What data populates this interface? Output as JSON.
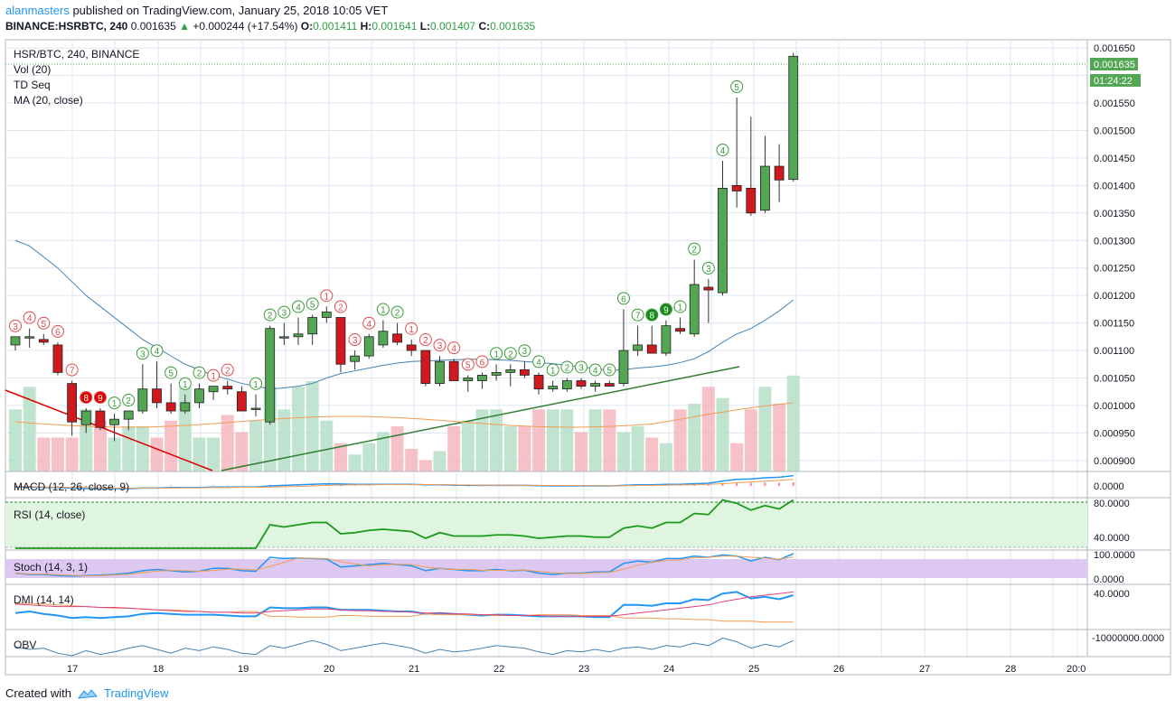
{
  "header": {
    "author": "alanmasters",
    "published": "published on TradingView.com, January 25, 2018 10:05 VET",
    "symbol": "BINANCE:HSRBTC, 240",
    "last": "0.001635",
    "change": "+0.000244 (+17.54%)",
    "o_label": "O:",
    "o": "0.001411",
    "h_label": "H:",
    "h": "0.001641",
    "l_label": "L:",
    "l": "0.001407",
    "c_label": "C:",
    "c": "0.001635"
  },
  "legend": [
    "HSR/BTC, 240, BINANCE",
    "Vol (20)",
    "TD Seq",
    "MA (20, close)"
  ],
  "price_badge": "0.001635",
  "countdown_badge": "01:24:22",
  "panes": {
    "macd": {
      "label": "MACD (12, 26, close, 9)",
      "tick": "0.0000"
    },
    "rsi": {
      "label": "RSI (14, close)",
      "ticks": [
        "80.0000",
        "40.0000"
      ]
    },
    "stoch": {
      "label": "Stoch (14, 3, 1)",
      "ticks": [
        "100.0000",
        "0.0000"
      ]
    },
    "dmi": {
      "label": "DMI (14, 14)",
      "tick": "40.0000"
    },
    "obv": {
      "label": "OBV",
      "tick": "-10000000.0000"
    }
  },
  "footer": {
    "created_with": "Created with",
    "brand": "TradingView"
  },
  "colors": {
    "up": "#53a653",
    "down": "#d0191e",
    "ma": "#4682b4",
    "grid": "#dfe6f0",
    "trend_up": "#2e7d32",
    "trend_down": "#e00000",
    "badge": "#53a653"
  },
  "chart_data": {
    "type": "candlestick",
    "title": "HSR/BTC, 240, BINANCE",
    "x_ticks": [
      "17",
      "18",
      "19",
      "20",
      "21",
      "22",
      "23",
      "24",
      "25",
      "26",
      "27",
      "28",
      "20:0"
    ],
    "y_ticks": [
      "0.001650",
      "0.001550",
      "0.001500",
      "0.001450",
      "0.001400",
      "0.001350",
      "0.001300",
      "0.001250",
      "0.001200",
      "0.001150",
      "0.001100",
      "0.001050",
      "0.001000",
      "0.000950",
      "0.000900"
    ],
    "y_range": [
      0.00088,
      0.001665
    ],
    "candles": [
      [
        0.00111,
        0.001125,
        0.0011,
        0.001125
      ],
      [
        0.001125,
        0.00114,
        0.001105,
        0.001125
      ],
      [
        0.00112,
        0.00113,
        0.00111,
        0.001115
      ],
      [
        0.00111,
        0.001115,
        0.001055,
        0.00106
      ],
      [
        0.00104,
        0.001045,
        0.000945,
        0.00097
      ],
      [
        0.000965,
        0.000995,
        0.00095,
        0.00099
      ],
      [
        0.00099,
        0.000995,
        0.000955,
        0.00096
      ],
      [
        0.000965,
        0.000985,
        0.000935,
        0.000975
      ],
      [
        0.000975,
        0.00099,
        0.000955,
        0.00099
      ],
      [
        0.00099,
        0.001075,
        0.000985,
        0.00103
      ],
      [
        0.00103,
        0.00108,
        0.000995,
        0.001005
      ],
      [
        0.001005,
        0.00104,
        0.000985,
        0.00099
      ],
      [
        0.00099,
        0.00102,
        0.000985,
        0.001005
      ],
      [
        0.001005,
        0.00104,
        0.000995,
        0.00103
      ],
      [
        0.001025,
        0.001035,
        0.00101,
        0.001035
      ],
      [
        0.001035,
        0.001045,
        0.00102,
        0.00103
      ],
      [
        0.001025,
        0.001035,
        0.00099,
        0.00099
      ],
      [
        0.000995,
        0.00102,
        0.00098,
        0.000995
      ],
      [
        0.00097,
        0.001145,
        0.000965,
        0.00114
      ],
      [
        0.001125,
        0.00115,
        0.00111,
        0.001125
      ],
      [
        0.001125,
        0.00116,
        0.00111,
        0.00113
      ],
      [
        0.00113,
        0.001165,
        0.00111,
        0.00116
      ],
      [
        0.00116,
        0.00118,
        0.00115,
        0.00117
      ],
      [
        0.00116,
        0.00116,
        0.00106,
        0.001075
      ],
      [
        0.00108,
        0.0011,
        0.001065,
        0.00109
      ],
      [
        0.00109,
        0.00113,
        0.001085,
        0.001125
      ],
      [
        0.00111,
        0.001155,
        0.001105,
        0.001135
      ],
      [
        0.00113,
        0.00115,
        0.00111,
        0.001115
      ],
      [
        0.00111,
        0.00112,
        0.00109,
        0.0011
      ],
      [
        0.0011,
        0.0011,
        0.001035,
        0.00104
      ],
      [
        0.00104,
        0.00109,
        0.001035,
        0.00108
      ],
      [
        0.00108,
        0.001085,
        0.001045,
        0.001045
      ],
      [
        0.001045,
        0.001055,
        0.001025,
        0.00105
      ],
      [
        0.001045,
        0.00106,
        0.00103,
        0.001055
      ],
      [
        0.001055,
        0.001075,
        0.001045,
        0.00106
      ],
      [
        0.00106,
        0.001075,
        0.001035,
        0.001065
      ],
      [
        0.001065,
        0.00108,
        0.00105,
        0.001055
      ],
      [
        0.001055,
        0.00106,
        0.00102,
        0.00103
      ],
      [
        0.00103,
        0.001045,
        0.001025,
        0.001035
      ],
      [
        0.00103,
        0.00105,
        0.001025,
        0.001045
      ],
      [
        0.001045,
        0.00105,
        0.00103,
        0.001035
      ],
      [
        0.001035,
        0.001045,
        0.001025,
        0.00104
      ],
      [
        0.00104,
        0.001045,
        0.001035,
        0.001035
      ],
      [
        0.00104,
        0.001175,
        0.001035,
        0.0011
      ],
      [
        0.0011,
        0.001145,
        0.00109,
        0.00111
      ],
      [
        0.00111,
        0.001145,
        0.001095,
        0.001095
      ],
      [
        0.001095,
        0.001155,
        0.00109,
        0.001145
      ],
      [
        0.00114,
        0.00116,
        0.00113,
        0.001135
      ],
      [
        0.00113,
        0.001265,
        0.001125,
        0.00122
      ],
      [
        0.001215,
        0.00123,
        0.00115,
        0.00121
      ],
      [
        0.001205,
        0.001445,
        0.0012,
        0.001395
      ],
      [
        0.0014,
        0.00156,
        0.00136,
        0.00139
      ],
      [
        0.001395,
        0.001525,
        0.001345,
        0.00135
      ],
      [
        0.001355,
        0.00149,
        0.00135,
        0.001435
      ],
      [
        0.001435,
        0.001475,
        0.00137,
        0.00141
      ],
      [
        0.001411,
        0.001641,
        0.001407,
        0.001635
      ]
    ],
    "volume": [
      0.55,
      0.75,
      0.3,
      0.3,
      0.3,
      0.55,
      0.45,
      0.3,
      0.4,
      0.4,
      0.3,
      0.45,
      0.75,
      0.3,
      0.3,
      0.5,
      0.35,
      0.45,
      0.75,
      0.55,
      0.75,
      0.8,
      0.45,
      0.25,
      0.15,
      0.25,
      0.35,
      0.4,
      0.2,
      0.1,
      0.18,
      0.4,
      0.45,
      0.55,
      0.55,
      0.4,
      0.4,
      0.55,
      0.55,
      0.55,
      0.35,
      0.55,
      0.55,
      0.35,
      0.4,
      0.3,
      0.25,
      0.55,
      0.6,
      0.75,
      0.65,
      0.25,
      0.55,
      0.75,
      0.6,
      0.85
    ],
    "ma20": [
      0.0013,
      0.00129,
      0.00127,
      0.00125,
      0.001225,
      0.0012,
      0.00118,
      0.00116,
      0.00114,
      0.00112,
      0.001105,
      0.00109,
      0.001075,
      0.001065,
      0.001055,
      0.001048,
      0.00104,
      0.001035,
      0.00103,
      0.001032,
      0.001035,
      0.00104,
      0.00105,
      0.001058,
      0.001063,
      0.001068,
      0.001073,
      0.001077,
      0.00108,
      0.001081,
      0.001082,
      0.001083,
      0.001084,
      0.001084,
      0.001083,
      0.001082,
      0.00108,
      0.001078,
      0.001076,
      0.001073,
      0.00107,
      0.001067,
      0.001064,
      0.001065,
      0.001068,
      0.00107,
      0.001073,
      0.001078,
      0.001085,
      0.001098,
      0.001115,
      0.00113,
      0.00114,
      0.001155,
      0.001172,
      0.001192
    ],
    "td_seq": [
      {
        "i": 0,
        "label": "3",
        "pos": "above",
        "color": "red"
      },
      {
        "i": 1,
        "label": "4",
        "pos": "above",
        "color": "red"
      },
      {
        "i": 2,
        "label": "5",
        "pos": "above",
        "color": "red"
      },
      {
        "i": 3,
        "label": "6",
        "pos": "above",
        "color": "red"
      },
      {
        "i": 4,
        "label": "7",
        "pos": "above",
        "color": "red"
      },
      {
        "i": 5,
        "label": "8",
        "pos": "above",
        "color": "redfill"
      },
      {
        "i": 6,
        "label": "9",
        "pos": "above",
        "color": "redfill"
      },
      {
        "i": 7,
        "label": "1",
        "pos": "above",
        "color": "green"
      },
      {
        "i": 8,
        "label": "2",
        "pos": "above",
        "color": "green"
      },
      {
        "i": 9,
        "label": "3",
        "pos": "above",
        "color": "green"
      },
      {
        "i": 10,
        "label": "4",
        "pos": "above",
        "color": "green"
      },
      {
        "i": 11,
        "label": "5",
        "pos": "above",
        "color": "green"
      },
      {
        "i": 12,
        "label": "1",
        "pos": "above",
        "color": "green"
      },
      {
        "i": 13,
        "label": "2",
        "pos": "above",
        "color": "green"
      },
      {
        "i": 14,
        "label": "1",
        "pos": "above",
        "color": "red"
      },
      {
        "i": 15,
        "label": "2",
        "pos": "above",
        "color": "red"
      },
      {
        "i": 17,
        "label": "1",
        "pos": "above",
        "color": "green"
      },
      {
        "i": 18,
        "label": "2",
        "pos": "above",
        "color": "green"
      },
      {
        "i": 19,
        "label": "3",
        "pos": "above",
        "color": "green"
      },
      {
        "i": 20,
        "label": "4",
        "pos": "above",
        "color": "green"
      },
      {
        "i": 21,
        "label": "5",
        "pos": "above",
        "color": "green"
      },
      {
        "i": 22,
        "label": "1",
        "pos": "above",
        "color": "red"
      },
      {
        "i": 23,
        "label": "2",
        "pos": "above",
        "color": "red"
      },
      {
        "i": 24,
        "label": "3",
        "pos": "above",
        "color": "red"
      },
      {
        "i": 25,
        "label": "4",
        "pos": "above",
        "color": "red"
      },
      {
        "i": 26,
        "label": "1",
        "pos": "above",
        "color": "green"
      },
      {
        "i": 27,
        "label": "2",
        "pos": "above",
        "color": "green"
      },
      {
        "i": 28,
        "label": "1",
        "pos": "above",
        "color": "red"
      },
      {
        "i": 29,
        "label": "2",
        "pos": "above",
        "color": "red"
      },
      {
        "i": 30,
        "label": "3",
        "pos": "above",
        "color": "red"
      },
      {
        "i": 31,
        "label": "4",
        "pos": "above",
        "color": "red"
      },
      {
        "i": 32,
        "label": "5",
        "pos": "above",
        "color": "red"
      },
      {
        "i": 33,
        "label": "6",
        "pos": "above",
        "color": "red"
      },
      {
        "i": 34,
        "label": "1",
        "pos": "above",
        "color": "green"
      },
      {
        "i": 35,
        "label": "2",
        "pos": "above",
        "color": "green"
      },
      {
        "i": 36,
        "label": "3",
        "pos": "above",
        "color": "green"
      },
      {
        "i": 37,
        "label": "4",
        "pos": "above",
        "color": "green"
      },
      {
        "i": 38,
        "label": "1",
        "pos": "above",
        "color": "green"
      },
      {
        "i": 39,
        "label": "2",
        "pos": "above",
        "color": "green"
      },
      {
        "i": 40,
        "label": "3",
        "pos": "above",
        "color": "green"
      },
      {
        "i": 41,
        "label": "4",
        "pos": "above",
        "color": "green"
      },
      {
        "i": 42,
        "label": "5",
        "pos": "above",
        "color": "green"
      },
      {
        "i": 43,
        "label": "6",
        "pos": "above",
        "color": "green"
      },
      {
        "i": 44,
        "label": "7",
        "pos": "above",
        "color": "green"
      },
      {
        "i": 45,
        "label": "8",
        "pos": "above",
        "color": "greenfill"
      },
      {
        "i": 46,
        "label": "9",
        "pos": "above",
        "color": "greenfill"
      },
      {
        "i": 47,
        "label": "1",
        "pos": "above",
        "color": "green"
      },
      {
        "i": 48,
        "label": "2",
        "pos": "above",
        "color": "green"
      },
      {
        "i": 49,
        "label": "3",
        "pos": "above",
        "color": "green"
      },
      {
        "i": 50,
        "label": "4",
        "pos": "above",
        "color": "green"
      },
      {
        "i": 51,
        "label": "5",
        "pos": "above",
        "color": "green"
      }
    ],
    "series": [
      {
        "name": "MA (20, close)"
      },
      {
        "name": "Vol (20)"
      },
      {
        "name": "MACD (12, 26, close, 9)"
      },
      {
        "name": "RSI (14, close)"
      },
      {
        "name": "Stoch (14, 3, 1)"
      },
      {
        "name": "DMI (14, 14)"
      },
      {
        "name": "OBV"
      }
    ],
    "rsi": [
      38,
      36,
      36,
      30,
      28,
      31,
      30,
      30,
      33,
      36,
      35,
      33,
      35,
      35,
      38,
      38,
      35,
      35,
      60,
      58,
      60,
      62,
      62,
      52,
      53,
      55,
      56,
      55,
      54,
      48,
      53,
      50,
      50,
      50,
      51,
      51,
      50,
      48,
      49,
      50,
      50,
      49,
      49,
      57,
      59,
      57,
      62,
      62,
      70,
      69,
      82,
      79,
      73,
      77,
      74,
      82
    ],
    "stoch": [
      20,
      15,
      15,
      10,
      8,
      10,
      12,
      15,
      20,
      30,
      35,
      30,
      25,
      28,
      40,
      40,
      30,
      28,
      85,
      80,
      82,
      80,
      78,
      45,
      50,
      55,
      60,
      55,
      50,
      30,
      40,
      35,
      30,
      30,
      35,
      30,
      32,
      20,
      15,
      20,
      20,
      25,
      25,
      60,
      70,
      65,
      80,
      80,
      90,
      85,
      95,
      90,
      70,
      85,
      75,
      100
    ],
    "dmi_plus": [
      18,
      20,
      17,
      15,
      12,
      13,
      12,
      13,
      14,
      17,
      18,
      17,
      16,
      16,
      16,
      15,
      14,
      14,
      25,
      24,
      24,
      25,
      25,
      22,
      22,
      22,
      21,
      20,
      20,
      17,
      18,
      17,
      16,
      15,
      16,
      16,
      15,
      14,
      14,
      14,
      14,
      13,
      13,
      28,
      28,
      27,
      30,
      30,
      35,
      34,
      42,
      44,
      36,
      38,
      35,
      40
    ],
    "dmi_minus": [
      30,
      30,
      29,
      28,
      27,
      26,
      25,
      24,
      24,
      23,
      22,
      22,
      21,
      20,
      19,
      19,
      20,
      20,
      14,
      14,
      13,
      13,
      13,
      15,
      15,
      14,
      14,
      14,
      14,
      17,
      16,
      16,
      16,
      16,
      15,
      15,
      15,
      16,
      16,
      16,
      15,
      15,
      15,
      12,
      12,
      12,
      11,
      11,
      10,
      10,
      8,
      8,
      8,
      7,
      7,
      7
    ],
    "adx": [
      29,
      28,
      27,
      26,
      26,
      26,
      25,
      25,
      24,
      23,
      22,
      21,
      20,
      20,
      19,
      19,
      18,
      18,
      20,
      21,
      22,
      23,
      23,
      22,
      21,
      21,
      20,
      20,
      19,
      18,
      18,
      17,
      17,
      16,
      16,
      15,
      15,
      15,
      14,
      14,
      14,
      14,
      14,
      16,
      18,
      20,
      22,
      24,
      26,
      28,
      32,
      35,
      38,
      40,
      42,
      44
    ],
    "obv": [
      -3,
      -5,
      -4,
      -8,
      -10,
      -6,
      -9,
      -7,
      -4,
      -2,
      -5,
      -8,
      -4,
      -6,
      -3,
      -5,
      -8,
      -9,
      -2,
      -4,
      -1,
      2,
      -1,
      -6,
      -4,
      -2,
      0,
      -2,
      -4,
      -8,
      -5,
      -7,
      -6,
      -4,
      -2,
      -3,
      -4,
      -7,
      -9,
      -6,
      -7,
      -5,
      -7,
      -4,
      -3,
      -5,
      -2,
      -3,
      0,
      -2,
      4,
      1,
      -4,
      -1,
      -3,
      2
    ],
    "macd_line": [
      -0.2,
      -0.2,
      -0.3,
      -0.3,
      -0.4,
      -0.5,
      -0.5,
      -0.5,
      -0.5,
      -0.4,
      -0.4,
      -0.3,
      -0.3,
      -0.3,
      -0.2,
      -0.2,
      -0.2,
      -0.2,
      0,
      0.1,
      0.2,
      0.3,
      0.4,
      0.35,
      0.3,
      0.3,
      0.3,
      0.3,
      0.3,
      0.2,
      0.2,
      0.15,
      0.1,
      0.1,
      0.1,
      0.1,
      0.1,
      0.05,
      0,
      0,
      0,
      0,
      0,
      0.1,
      0.2,
      0.2,
      0.3,
      0.3,
      0.4,
      0.5,
      0.9,
      1.2,
      1.3,
      1.5,
      1.6,
      1.9
    ],
    "macd_signal": [
      -0.1,
      -0.1,
      -0.2,
      -0.2,
      -0.3,
      -0.3,
      -0.4,
      -0.4,
      -0.4,
      -0.4,
      -0.4,
      -0.4,
      -0.35,
      -0.35,
      -0.3,
      -0.3,
      -0.25,
      -0.25,
      -0.2,
      -0.15,
      -0.1,
      0,
      0.1,
      0.15,
      0.2,
      0.2,
      0.25,
      0.25,
      0.25,
      0.25,
      0.22,
      0.2,
      0.18,
      0.15,
      0.13,
      0.12,
      0.11,
      0.1,
      0.08,
      0.06,
      0.05,
      0.04,
      0.03,
      0.05,
      0.08,
      0.1,
      0.14,
      0.18,
      0.23,
      0.3,
      0.42,
      0.58,
      0.72,
      0.88,
      1.02,
      1.2
    ]
  }
}
